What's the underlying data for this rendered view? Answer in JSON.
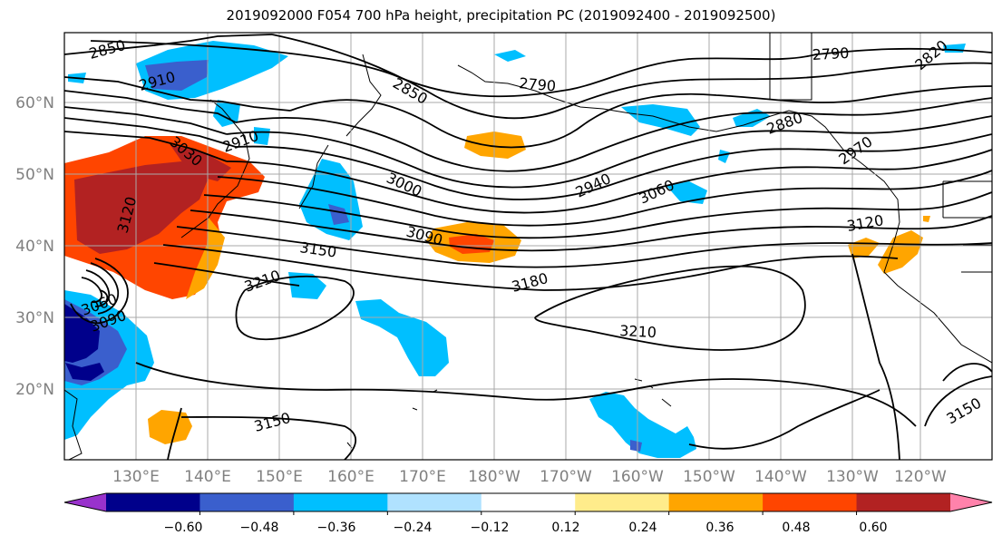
{
  "title": "2019092000 F054 700 hPa height, precipitation PC (2019092400 - 2019092500)",
  "lat_labels": [
    "60°N",
    "50°N",
    "40°N",
    "30°N",
    "20°N"
  ],
  "lon_labels": [
    "130°E",
    "140°E",
    "150°E",
    "160°E",
    "170°E",
    "180°W",
    "170°W",
    "160°W",
    "150°W",
    "140°W",
    "130°W",
    "120°W"
  ],
  "contour_labels": [
    "2850",
    "2910",
    "2850",
    "2790",
    "2910",
    "3030",
    "3120",
    "3000",
    "2940",
    "3060",
    "3090",
    "3150",
    "3210",
    "3180",
    "3060",
    "3090",
    "3210",
    "3150",
    "2790",
    "2820",
    "2880",
    "2970",
    "3120",
    "3150"
  ],
  "colorbar": {
    "colors": [
      "#9932CC",
      "#00008B",
      "#3A5FCD",
      "#00BFFF",
      "#B0E2FF",
      "#FFFFFF",
      "#FFEC8B",
      "#FFA500",
      "#FF4500",
      "#B22222",
      "#FF82AB"
    ],
    "ticks": [
      "−0.60",
      "−0.48",
      "−0.36",
      "−0.24",
      "−0.12",
      "0.12",
      "0.24",
      "0.36",
      "0.48",
      "0.60"
    ]
  },
  "palette": {
    "land_outline": "#000000",
    "grid": "#a9a9a9",
    "contour": "#000000"
  }
}
